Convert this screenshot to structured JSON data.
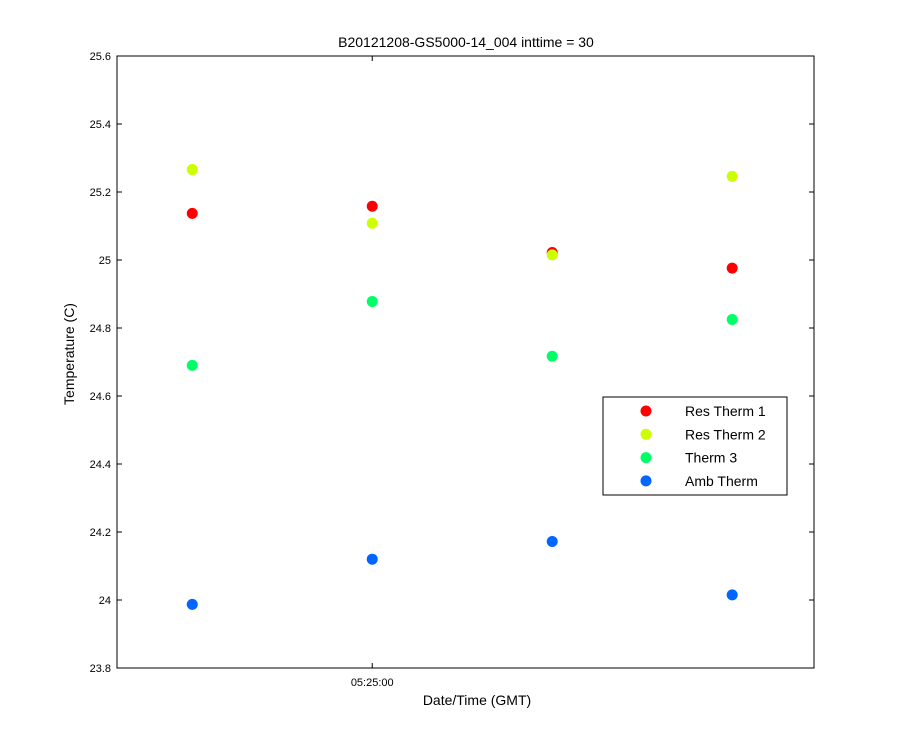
{
  "chart_data": {
    "type": "scatter",
    "title": "B20121208-GS5000-14_004 inttime = 30",
    "xlabel": "Date/Time (GMT)",
    "ylabel": "Temperature (C)",
    "ylim": [
      23.8,
      25.6
    ],
    "y_ticks": [
      23.8,
      24,
      24.2,
      24.4,
      24.6,
      24.8,
      25,
      25.2,
      25.4,
      25.6
    ],
    "y_tick_labels": [
      "23.8",
      "24",
      "24.2",
      "24.4",
      "24.6",
      "24.8",
      "25",
      "25.2",
      "25.4",
      "25.6"
    ],
    "x": [
      "05:23:10",
      "05:25:00",
      "05:26:50",
      "05:28:40"
    ],
    "xlim": [
      "05:22:24",
      "05:29:30"
    ],
    "x_ticks": [
      "05:25:00"
    ],
    "x_tick_labels": [
      "05:25:00"
    ],
    "grid": false,
    "legend_position": "right",
    "series": [
      {
        "name": "Res Therm 1",
        "color": "#ff0000",
        "values": [
          25.137,
          25.158,
          25.022,
          24.976
        ]
      },
      {
        "name": "Res Therm 2",
        "color": "#ccff00",
        "values": [
          25.266,
          25.108,
          25.015,
          25.246
        ]
      },
      {
        "name": "Therm 3",
        "color": "#00ff66",
        "values": [
          24.69,
          24.878,
          24.717,
          24.825
        ]
      },
      {
        "name": "Amb Therm",
        "color": "#0066ff",
        "values": [
          23.987,
          24.12,
          24.172,
          24.015
        ]
      }
    ]
  }
}
